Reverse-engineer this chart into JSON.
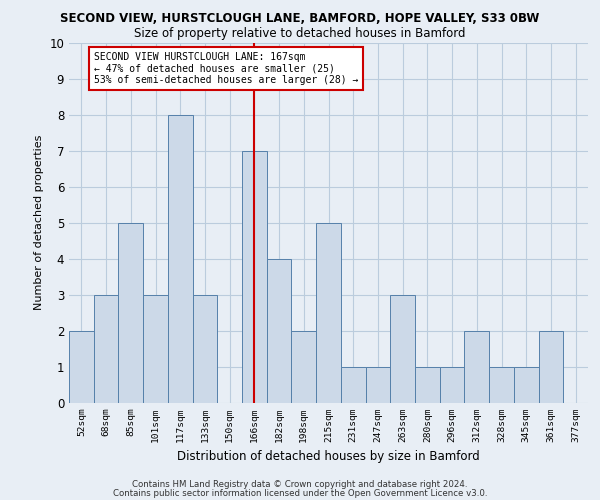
{
  "title_line1": "SECOND VIEW, HURSTCLOUGH LANE, BAMFORD, HOPE VALLEY, S33 0BW",
  "title_line2": "Size of property relative to detached houses in Bamford",
  "xlabel": "Distribution of detached houses by size in Bamford",
  "ylabel": "Number of detached properties",
  "footer_line1": "Contains HM Land Registry data © Crown copyright and database right 2024.",
  "footer_line2": "Contains public sector information licensed under the Open Government Licence v3.0.",
  "categories": [
    "52sqm",
    "68sqm",
    "85sqm",
    "101sqm",
    "117sqm",
    "133sqm",
    "150sqm",
    "166sqm",
    "182sqm",
    "198sqm",
    "215sqm",
    "231sqm",
    "247sqm",
    "263sqm",
    "280sqm",
    "296sqm",
    "312sqm",
    "328sqm",
    "345sqm",
    "361sqm",
    "377sqm"
  ],
  "values": [
    2,
    3,
    5,
    3,
    8,
    3,
    0,
    7,
    4,
    2,
    5,
    1,
    1,
    3,
    1,
    1,
    2,
    1,
    1,
    2,
    0
  ],
  "highlight_index": 7,
  "bar_color": "#ccd9e8",
  "bar_edge_color": "#5580aa",
  "highlight_line_color": "#cc0000",
  "annotation_text": "SECOND VIEW HURSTCLOUGH LANE: 167sqm\n← 47% of detached houses are smaller (25)\n53% of semi-detached houses are larger (28) →",
  "ylim": [
    0,
    10
  ],
  "yticks": [
    0,
    1,
    2,
    3,
    4,
    5,
    6,
    7,
    8,
    9,
    10
  ],
  "grid_color": "#bbccdd",
  "background_color": "#e8eef5",
  "fig_background": "#e8eef5"
}
